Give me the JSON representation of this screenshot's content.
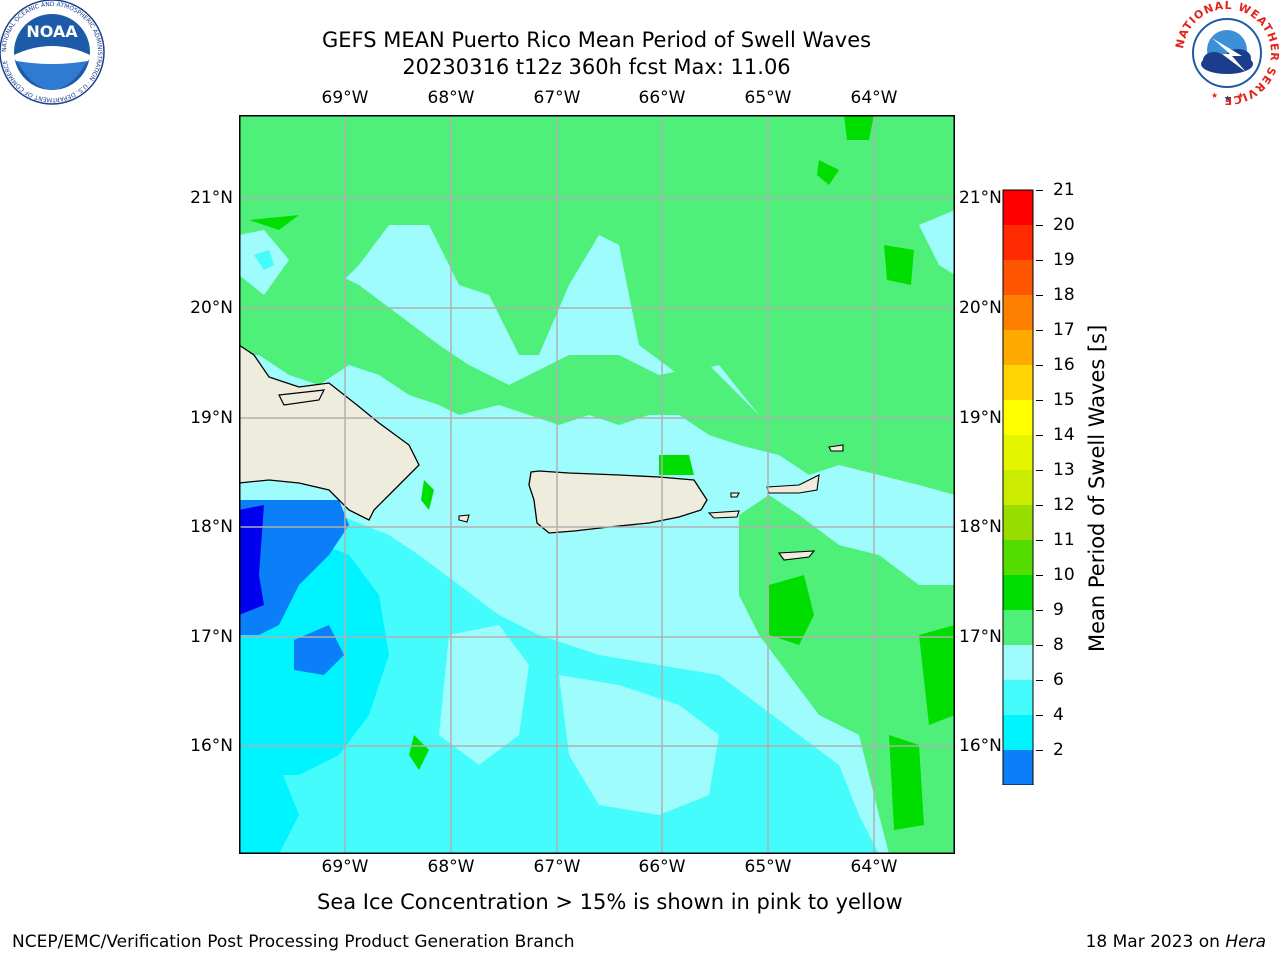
{
  "title": {
    "line1": "GEFS MEAN Puerto Rico Mean Period of Swell Waves",
    "line2": "20230316 t12z 360h fcst   Max: 11.06"
  },
  "map": {
    "lon_labels": [
      "69°W",
      "68°W",
      "67°W",
      "66°W",
      "65°W",
      "64°W"
    ],
    "lat_labels": [
      "21°N",
      "20°N",
      "19°N",
      "18°N",
      "17°N",
      "16°N"
    ],
    "colors": {
      "land": "#eeecdd",
      "gridline": "#b0b0b0"
    }
  },
  "colorbar": {
    "label": "Mean Period of Swell Waves [s]",
    "ticks": [
      "21",
      "20",
      "19",
      "18",
      "17",
      "16",
      "15",
      "14",
      "13",
      "12",
      "11",
      "10",
      "9",
      "8",
      "6",
      "4",
      "2"
    ],
    "levels": [
      {
        "color": "#ff0000"
      },
      {
        "color": "#ff2a00"
      },
      {
        "color": "#ff5500"
      },
      {
        "color": "#ff7f00"
      },
      {
        "color": "#ffaa00"
      },
      {
        "color": "#ffd400"
      },
      {
        "color": "#ffff00"
      },
      {
        "color": "#e5f500"
      },
      {
        "color": "#cbeb00"
      },
      {
        "color": "#99dd00"
      },
      {
        "color": "#55dd00"
      },
      {
        "color": "#00dd00"
      },
      {
        "color": "#4ff07a"
      },
      {
        "color": "#9ffcfc"
      },
      {
        "color": "#44fcfc"
      },
      {
        "color": "#00f4ff"
      },
      {
        "color": "#0a7ff7"
      }
    ],
    "underflow_color": "#0000ee"
  },
  "caption": "Sea Ice Concentration > 15% is shown in pink to yellow",
  "footer": {
    "left": "NCEP/EMC/Verification Post Processing Product Generation Branch",
    "right_prefix": "18 Mar 2023 on ",
    "right_machine": "Hera"
  },
  "logos": {
    "noaa_text": "NOAA",
    "noaa_ring": "NATIONAL OCEANIC AND ATMOSPHERIC ADMINISTRATION · U.S. DEPARTMENT OF COMMERCE",
    "nws_ring": "NATIONAL WEATHER SERVICE"
  }
}
